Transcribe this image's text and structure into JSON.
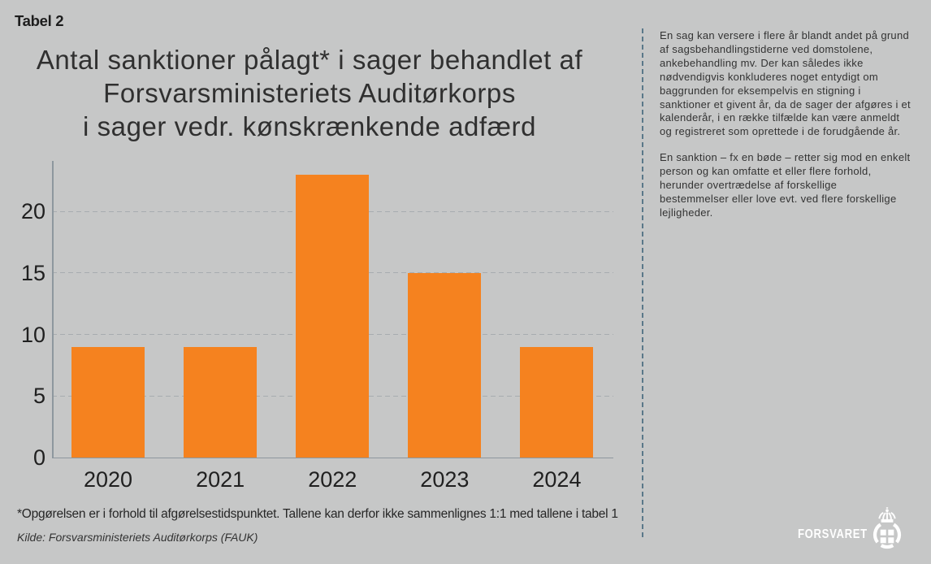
{
  "page": {
    "background_color": "#c6c7c7",
    "table_label": "Tabel 2"
  },
  "chart_data": {
    "type": "bar",
    "title": "Antal sanktioner pålagt* i sager behandlet af Forsvarsministeriets Auditørkorps i sager vedr. kønskrænkende adfærd",
    "title_lines": [
      "Antal sanktioner pålagt* i sager behandlet af",
      "Forsvarsministeriets Auditørkorps",
      "i sager vedr. kønskrænkende adfærd"
    ],
    "categories": [
      "2020",
      "2021",
      "2022",
      "2023",
      "2024"
    ],
    "values": [
      9,
      9,
      23,
      15,
      9
    ],
    "yticks": [
      0,
      5,
      10,
      15,
      20
    ],
    "ylim": [
      0,
      24
    ],
    "xlabel": "",
    "ylabel": "",
    "bar_color": "#f5821f",
    "grid": "horizontal-dashed",
    "legend": "none"
  },
  "footnote": "*Opgørelsen er i forhold til afgørelsestidspunktet. Tallene kan derfor ikke sammenlignes 1:1 med tallene i tabel 1",
  "source": "Kilde: Forsvarsministeriets Auditørkorps (FAUK)",
  "sidebar": {
    "paragraphs": [
      [
        "En sag kan versere i flere år blandt andet på grund",
        "af sagsbehandlingstiderne ved domstolene,",
        "ankebehandling mv. Der kan således ikke",
        "nødvendigvis konkluderes noget entydigt om",
        "baggrunden for eksempelvis en stigning i",
        "sanktioner et givent år, da de sager der afgøres i et",
        "kalenderår, i en række tilfælde kan være anmeldt",
        "og registreret som oprettede i de forudgående år."
      ],
      [
        "En sanktion – fx en bøde – retter sig mod en enkelt",
        "person og kan omfatte et eller flere forhold,",
        "herunder overtrædelse af forskellige",
        "bestemmelser eller love evt. ved flere forskellige",
        "lejligheder."
      ]
    ]
  },
  "logo": {
    "text": "FORSVARET",
    "color": "#ffffff"
  },
  "divider_color": "#5a7889"
}
